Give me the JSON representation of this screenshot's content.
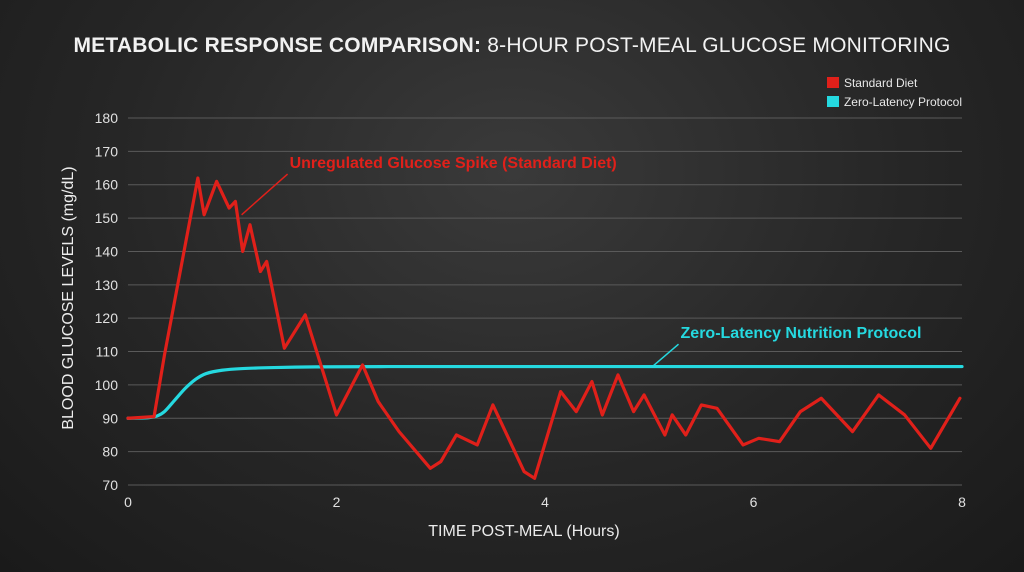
{
  "chart_data": {
    "type": "line",
    "title": "METABOLIC RESPONSE COMPARISON: 8-HOUR POST-MEAL GLUCOSE MONITORING",
    "title_bold_part": "METABOLIC RESPONSE COMPARISON:",
    "title_rest_part": " 8-HOUR POST-MEAL GLUCOSE MONITORING",
    "xlabel": "TIME POST-MEAL (Hours)",
    "ylabel": "BLOOD GLUCOSE LEVELS (mg/dL)",
    "xlim": [
      0,
      8
    ],
    "ylim": [
      70,
      180
    ],
    "x_ticks": [
      0,
      2,
      4,
      6,
      8
    ],
    "y_ticks": [
      70,
      80,
      90,
      100,
      110,
      120,
      130,
      140,
      150,
      160,
      170,
      180
    ],
    "grid": "horizontal",
    "legend_position": "top-right",
    "series": [
      {
        "name": "Standard Diet",
        "color": "#e0201a",
        "x": [
          0,
          0.25,
          0.35,
          0.67,
          0.73,
          0.85,
          0.97,
          1.03,
          1.1,
          1.17,
          1.27,
          1.33,
          1.5,
          1.7,
          2.0,
          2.25,
          2.4,
          2.6,
          2.9,
          3.0,
          3.15,
          3.35,
          3.5,
          3.8,
          3.9,
          4.15,
          4.3,
          4.45,
          4.55,
          4.7,
          4.85,
          4.95,
          5.15,
          5.22,
          5.35,
          5.5,
          5.65,
          5.9,
          6.05,
          6.25,
          6.45,
          6.65,
          6.95,
          7.2,
          7.45,
          7.7,
          7.98
        ],
        "values": [
          90,
          90.5,
          109,
          162,
          151,
          161,
          153,
          155,
          140,
          148,
          134,
          137,
          111,
          121,
          91,
          106,
          95,
          86,
          75,
          77,
          85,
          82,
          94,
          74,
          72,
          98,
          92,
          101,
          91,
          103,
          92,
          97,
          85,
          91,
          85,
          94,
          93,
          82,
          84,
          83,
          92,
          96,
          86,
          97,
          91,
          81,
          96
        ]
      },
      {
        "name": "Zero-Latency Protocol",
        "color": "#25d9e0",
        "x": [
          0,
          0.2,
          0.28,
          0.35,
          0.45,
          0.55,
          0.65,
          0.75,
          0.9,
          1.1,
          1.4,
          1.8,
          2.5,
          3.5,
          5,
          8
        ],
        "values": [
          90,
          90.2,
          90.7,
          92,
          95.5,
          99,
          101.7,
          103.4,
          104.4,
          104.9,
          105.2,
          105.4,
          105.5,
          105.5,
          105.5,
          105.5
        ]
      }
    ],
    "annotations": [
      {
        "text": "Unregulated Glucose Spike (Standard Diet)",
        "series": "Standard Diet",
        "text_x": 1.55,
        "text_y": 165,
        "point_x": 1.09,
        "point_y": 151
      },
      {
        "text": "Zero-Latency Nutrition Protocol",
        "series": "Zero-Latency Protocol",
        "text_x": 5.3,
        "text_y": 114,
        "point_x": 5.03,
        "point_y": 105.5
      }
    ]
  }
}
